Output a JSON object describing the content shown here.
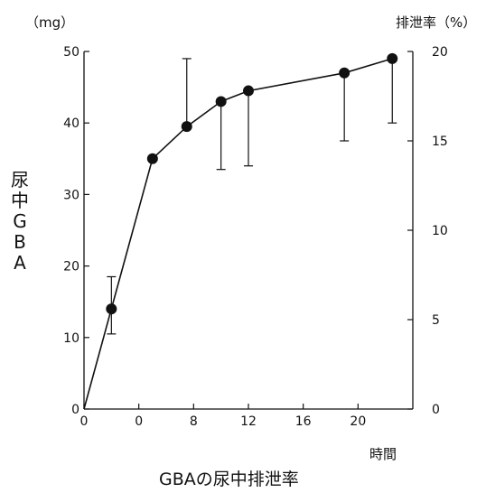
{
  "chart_data": {
    "type": "line",
    "title": "GBAの尿中排泄率",
    "xlabel": "時間",
    "ylabel_left_chars": [
      "尿",
      "中",
      "G",
      "B",
      "A"
    ],
    "left_unit": "（mg）",
    "right_unit": "排泄率（%）",
    "x_ticks": [
      "0",
      "0",
      "8",
      "12",
      "16",
      "20"
    ],
    "ylim_left": [
      0,
      50
    ],
    "y_ticks_left": [
      "0",
      "10",
      "20",
      "30",
      "40",
      "50"
    ],
    "ylim_right": [
      0,
      20
    ],
    "y_ticks_right": [
      "0",
      "5",
      "10",
      "15",
      "20"
    ],
    "grid": false,
    "series": [
      {
        "x": [
          0,
          2,
          5,
          7.5,
          10,
          12,
          19,
          22.5
        ],
        "y": [
          0,
          14,
          35,
          39.5,
          43,
          44.5,
          47,
          49
        ],
        "err_low": [
          null,
          10.5,
          null,
          39.5,
          33.5,
          34,
          37.5,
          40
        ],
        "err_high": [
          null,
          18.5,
          44,
          49,
          43,
          44.5,
          47,
          49
        ],
        "color": "#111111"
      }
    ]
  }
}
